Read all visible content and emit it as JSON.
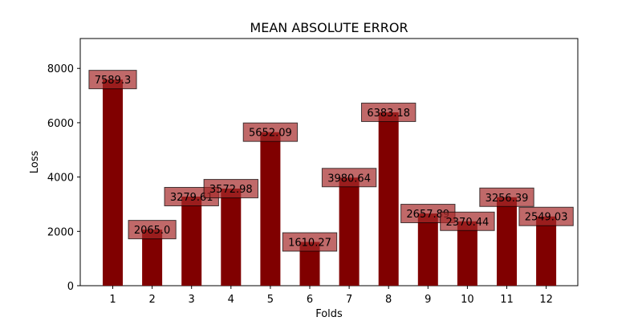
{
  "chart_data": {
    "type": "bar",
    "title": "MEAN ABSOLUTE ERROR",
    "xlabel": "Folds",
    "ylabel": "Loss",
    "categories": [
      "1",
      "2",
      "3",
      "4",
      "5",
      "6",
      "7",
      "8",
      "9",
      "10",
      "11",
      "12"
    ],
    "values": [
      7589.3,
      2065.0,
      3279.61,
      3572.98,
      5652.09,
      1610.27,
      3980.64,
      6383.18,
      2657.89,
      2370.44,
      3256.39,
      2549.03
    ],
    "value_labels": [
      "7589.3",
      "2065.0",
      "3279.61",
      "3572.98",
      "5652.09",
      "1610.27",
      "3980.64",
      "6383.18",
      "2657.89",
      "2370.44",
      "3256.39",
      "2549.03"
    ],
    "ylim": [
      0,
      9100
    ],
    "yticks": [
      0,
      2000,
      4000,
      6000,
      8000
    ],
    "grid": false,
    "legend": "none",
    "bar_color": "#800000",
    "label_box_color": "#a52a2a"
  }
}
